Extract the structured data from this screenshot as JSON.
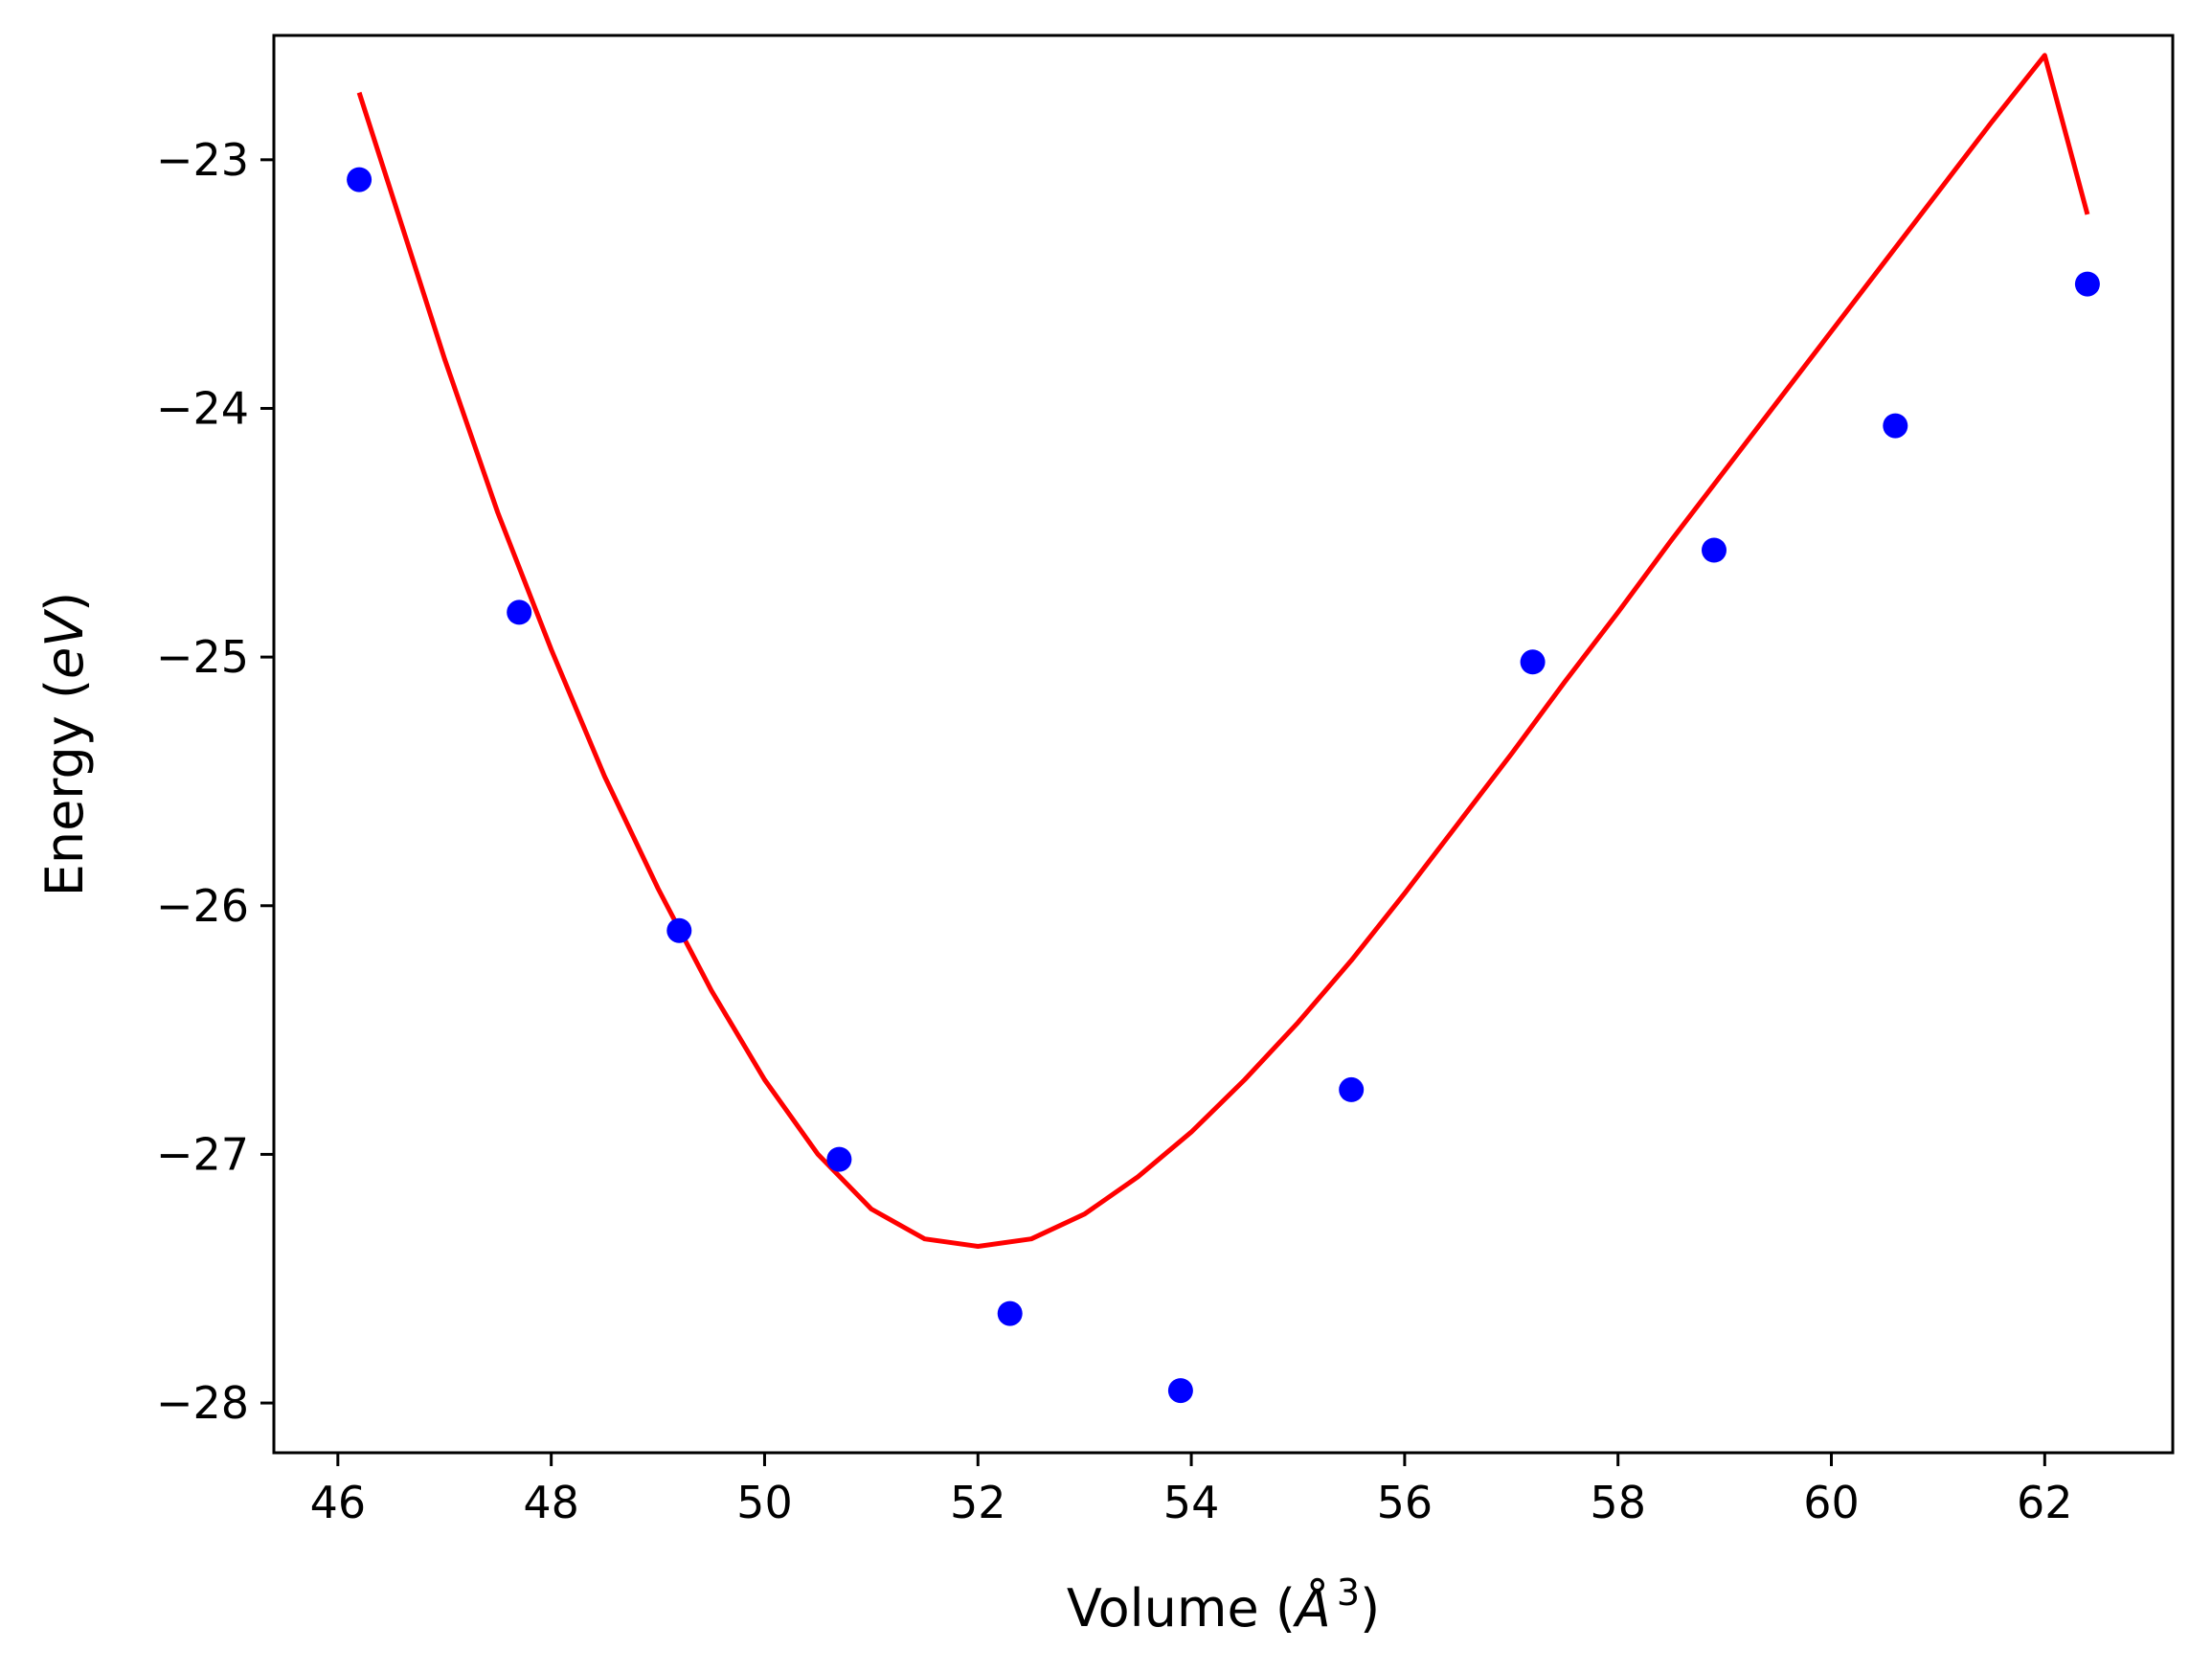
{
  "chart_data": {
    "type": "scatter",
    "title": "",
    "xlabel": "Volume (Å³)",
    "ylabel": "Energy (eV)",
    "xlabel_parts": {
      "prefix": "Volume (",
      "unit": "Å",
      "sup": "3",
      "suffix": ")"
    },
    "ylabel_parts": {
      "prefix": "Energy (",
      "unit": "eV",
      "suffix": ")"
    },
    "xlim": [
      45.4,
      63.2
    ],
    "ylim": [
      -28.2,
      -22.5
    ],
    "xticks": [
      46,
      48,
      50,
      52,
      54,
      56,
      58,
      60,
      62
    ],
    "yticks": [
      -23,
      -24,
      -25,
      -26,
      -27,
      -28
    ],
    "grid": false,
    "legend": "none",
    "series": [
      {
        "kind": "points",
        "color": "#0000ff",
        "x": [
          46.2,
          47.7,
          49.2,
          50.7,
          52.3,
          53.9,
          55.5,
          57.2,
          58.9,
          60.6,
          62.4
        ],
        "y": [
          -23.08,
          -24.82,
          -26.1,
          -27.02,
          -27.64,
          -27.95,
          -26.74,
          -25.02,
          -24.57,
          -24.07,
          -23.5
        ]
      },
      {
        "kind": "fit-curve",
        "color": "#ff0000",
        "x": [
          46.2,
          46.5,
          47.0,
          47.5,
          48.0,
          48.5,
          49.0,
          49.5,
          50.0,
          50.5,
          51.0,
          51.5,
          52.0,
          52.5,
          53.0,
          53.5,
          54.0,
          54.5,
          55.0,
          55.5,
          56.0,
          56.5,
          57.0,
          57.5,
          58.0,
          58.5,
          59.0,
          59.5,
          60.0,
          60.5,
          61.0,
          61.5,
          62.0,
          62.4
        ],
        "y": [
          -22.73,
          -23.13,
          -23.8,
          -24.42,
          -24.97,
          -25.48,
          -25.93,
          -26.34,
          -26.7,
          -27.0,
          -27.22,
          -27.34,
          -27.37,
          -27.34,
          -27.24,
          -27.09,
          -26.91,
          -26.7,
          -26.47,
          -26.22,
          -25.95,
          -25.67,
          -25.39,
          -25.1,
          -24.82,
          -24.53,
          -24.25,
          -23.97,
          -23.69,
          -23.41,
          -23.13,
          -22.85,
          -22.58,
          -23.22
        ]
      }
    ]
  }
}
